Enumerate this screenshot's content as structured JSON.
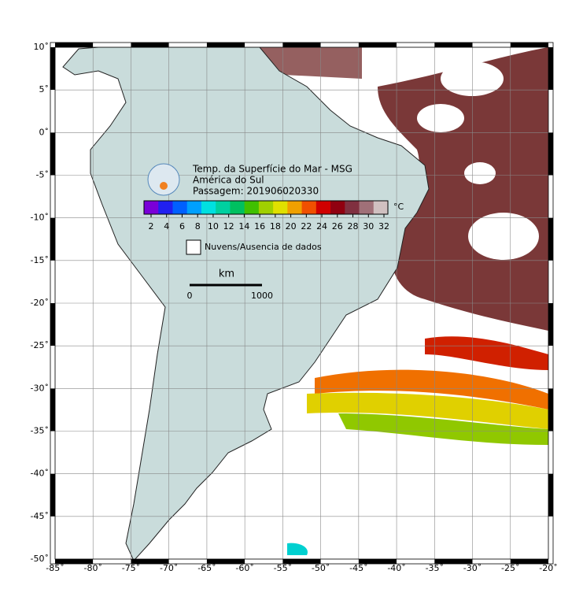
{
  "map": {
    "title": [
      "Temp. da Superfície do Mar - MSG",
      "América do Sul",
      "Passagem: 201906020330"
    ],
    "lon_ticks": [
      {
        "value": -85,
        "label": "-85˚"
      },
      {
        "value": -80,
        "label": "-80˚"
      },
      {
        "value": -75,
        "label": "-75˚"
      },
      {
        "value": -70,
        "label": "-70˚"
      },
      {
        "value": -65,
        "label": "-65˚"
      },
      {
        "value": -60,
        "label": "-60˚"
      },
      {
        "value": -55,
        "label": "-55˚"
      },
      {
        "value": -50,
        "label": "-50˚"
      },
      {
        "value": -45,
        "label": "-45˚"
      },
      {
        "value": -40,
        "label": "-40˚"
      },
      {
        "value": -35,
        "label": "-35˚"
      },
      {
        "value": -30,
        "label": "-30˚"
      },
      {
        "value": -25,
        "label": "-25˚"
      },
      {
        "value": -20,
        "label": "-20˚"
      }
    ],
    "lat_ticks": [
      {
        "value": 10,
        "label": "10˚"
      },
      {
        "value": 5,
        "label": "5˚"
      },
      {
        "value": 0,
        "label": "0˚"
      },
      {
        "value": -5,
        "label": "-5˚"
      },
      {
        "value": -10,
        "label": "-10˚"
      },
      {
        "value": -15,
        "label": "-15˚"
      },
      {
        "value": -20,
        "label": "-20˚"
      },
      {
        "value": -25,
        "label": "-25˚"
      },
      {
        "value": -30,
        "label": "-30˚"
      },
      {
        "value": -35,
        "label": "-35˚"
      },
      {
        "value": -40,
        "label": "-40˚"
      },
      {
        "value": -45,
        "label": "-45˚"
      },
      {
        "value": -50,
        "label": "-50˚"
      }
    ],
    "colorbar": {
      "labels": [
        2,
        4,
        6,
        8,
        10,
        12,
        14,
        16,
        18,
        20,
        22,
        24,
        26,
        28,
        30,
        32
      ],
      "unit": "°C",
      "colors": [
        "#7a00d8",
        "#2020f0",
        "#0060ff",
        "#00a0ff",
        "#00e0e0",
        "#00d0a0",
        "#00c060",
        "#40c000",
        "#a0d000",
        "#e0e000",
        "#f0a000",
        "#f05000",
        "#d00000",
        "#900010",
        "#803040",
        "#a07078",
        "#d0c0c0"
      ]
    },
    "legend": "Nuvens/Ausencia de dados",
    "scale": {
      "unit": "km",
      "start": 0,
      "end": 1000
    }
  }
}
